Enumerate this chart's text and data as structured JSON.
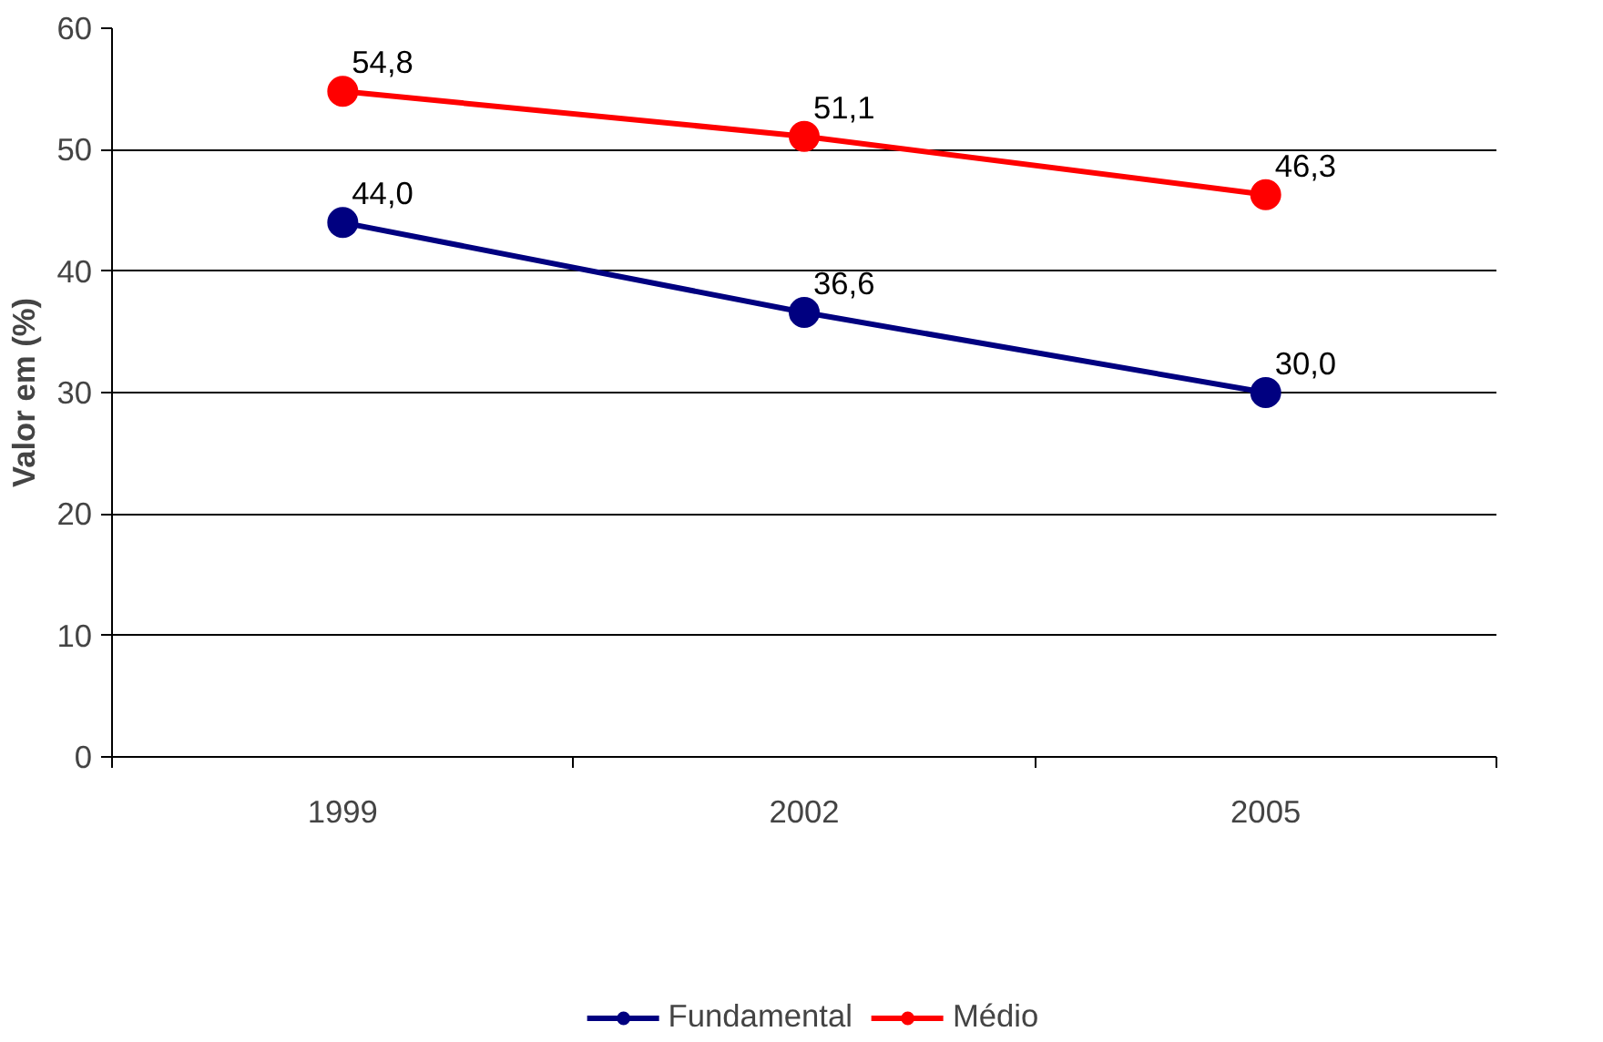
{
  "chart_data": {
    "type": "line",
    "ylabel": "Valor em (%)",
    "categories": [
      "1999",
      "2002",
      "2005"
    ],
    "series": [
      {
        "name": "Fundamental",
        "color": "#000080",
        "values": [
          44.0,
          36.6,
          30.0
        ],
        "value_labels": [
          "44,0",
          "36,6",
          "30,0"
        ]
      },
      {
        "name": "Médio",
        "color": "#ff0000",
        "values": [
          54.8,
          51.1,
          46.3
        ],
        "value_labels": [
          "54,8",
          "51,1",
          "46,3"
        ]
      }
    ],
    "ylim": [
      0,
      60
    ],
    "yticks": [
      0,
      10,
      20,
      30,
      40,
      50,
      60
    ],
    "grid": "y",
    "legend": "bottom",
    "marker": "circle",
    "line_style": "solid"
  }
}
